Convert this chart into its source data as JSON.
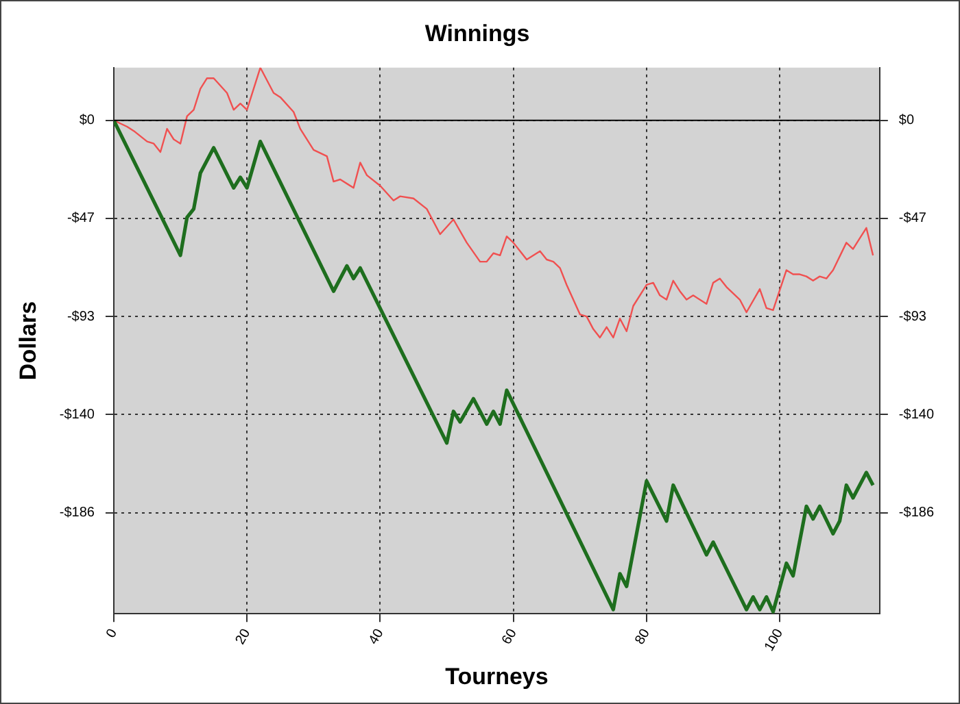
{
  "chart_data": {
    "type": "line",
    "title": "Winnings",
    "xlabel": "Tourneys",
    "ylabel": "Dollars",
    "xlim": [
      0,
      115
    ],
    "xticks": [
      0,
      20,
      40,
      60,
      80,
      100
    ],
    "ylim": [
      -234,
      25
    ],
    "yticks": [
      {
        "value": 0,
        "label": "$0"
      },
      {
        "value": -46.5,
        "label": "-$47"
      },
      {
        "value": -93,
        "label": "-$93"
      },
      {
        "value": -139.5,
        "label": "-$140"
      },
      {
        "value": -186,
        "label": "-$186"
      }
    ],
    "y2lim": [
      -234,
      25
    ],
    "y2ticks": [
      {
        "value": 0,
        "label": "$0"
      },
      {
        "value": -46.5,
        "label": "-$47"
      },
      {
        "value": -93,
        "label": "-$93"
      },
      {
        "value": -139.5,
        "label": "-$140"
      },
      {
        "value": -186,
        "label": "-$186"
      }
    ],
    "series": [
      {
        "color": "#1e6e1e",
        "x": [
          0,
          10,
          11,
          12,
          13,
          15,
          18,
          19,
          20,
          22,
          33,
          35,
          36,
          37,
          50,
          51,
          52,
          54,
          56,
          57,
          58,
          59,
          75,
          76,
          77,
          80,
          83,
          84,
          89,
          90,
          95,
          96,
          97,
          98,
          99,
          101,
          102,
          104,
          105,
          106,
          108,
          109,
          110,
          111,
          113,
          114
        ],
        "values": [
          0,
          -64,
          -46,
          -42,
          -25,
          -13,
          -32,
          -27,
          -32,
          -10,
          -81,
          -69,
          -75,
          -70,
          -153,
          -138,
          -143,
          -132,
          -144,
          -138,
          -144,
          -128,
          -232,
          -215,
          -221,
          -171,
          -190,
          -173,
          -206,
          -200,
          -232,
          -226,
          -232,
          -226,
          -233,
          -210,
          -216,
          -183,
          -189,
          -183,
          -196,
          -190,
          -173,
          -179,
          -167,
          -173
        ]
      },
      {
        "color": "#f05050",
        "x": [
          0,
          2,
          3,
          5,
          6,
          7,
          8,
          9,
          10,
          11,
          12,
          13,
          14,
          15,
          17,
          18,
          19,
          20,
          22,
          24,
          25,
          27,
          28,
          30,
          32,
          33,
          34,
          36,
          37,
          38,
          40,
          42,
          43,
          45,
          47,
          49,
          51,
          53,
          55,
          56,
          57,
          58,
          59,
          60,
          62,
          64,
          65,
          66,
          67,
          68,
          70,
          71,
          72,
          73,
          74,
          75,
          76,
          77,
          78,
          80,
          81,
          82,
          83,
          84,
          85,
          86,
          87,
          89,
          90,
          91,
          92,
          94,
          95,
          97,
          98,
          99,
          101,
          102,
          103,
          104,
          105,
          106,
          107,
          108,
          110,
          111,
          112,
          113,
          114
        ],
        "values": [
          0,
          -3,
          -5,
          -10,
          -11,
          -15,
          -4,
          -9,
          -11,
          2,
          5,
          15,
          20,
          20,
          13,
          5,
          8,
          5,
          25,
          13,
          11,
          4,
          -4,
          -14,
          -17,
          -29,
          -28,
          -32,
          -20,
          -26,
          -31,
          -38,
          -36,
          -37,
          -42,
          -54,
          -47,
          -58,
          -67,
          -67,
          -63,
          -64,
          -55,
          -58,
          -66,
          -62,
          -66,
          -67,
          -70,
          -78,
          -92,
          -93,
          -99,
          -103,
          -98,
          -103,
          -94,
          -100,
          -88,
          -78,
          -77,
          -83,
          -85,
          -76,
          -81,
          -85,
          -83,
          -87,
          -77,
          -75,
          -79,
          -85,
          -91,
          -80,
          -89,
          -90,
          -71,
          -73,
          -73,
          -74,
          -76,
          -74,
          -75,
          -71,
          -58,
          -61,
          -56,
          -51,
          -64
        ]
      }
    ],
    "ref_lines": [
      {
        "axis": "y",
        "value": 0,
        "color": "#000000"
      }
    ],
    "grid": true,
    "legend": false,
    "marker": "none",
    "line_style": "solid"
  }
}
